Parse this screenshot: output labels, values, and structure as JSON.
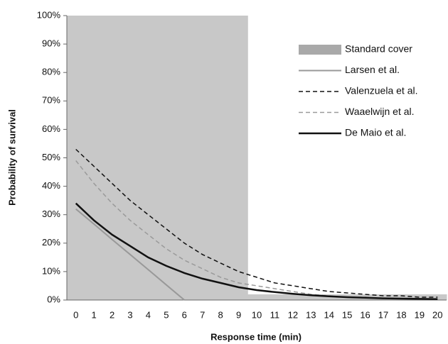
{
  "chart_data": {
    "type": "line",
    "x_label": "Response time (min)",
    "y_label": "Probability of survival",
    "categories": [
      "0",
      "1",
      "2",
      "3",
      "4",
      "5",
      "6",
      "7",
      "8",
      "9",
      "10",
      "11",
      "12",
      "13",
      "14",
      "15",
      "16",
      "17",
      "18",
      "19",
      "20"
    ],
    "ylim": [
      0,
      100
    ],
    "yticks": [
      {
        "value": 0,
        "label": "0%"
      },
      {
        "value": 10,
        "label": "10%"
      },
      {
        "value": 20,
        "label": "20%"
      },
      {
        "value": 30,
        "label": "30%"
      },
      {
        "value": 40,
        "label": "40%"
      },
      {
        "value": 50,
        "label": "50%"
      },
      {
        "value": 60,
        "label": "60%"
      },
      {
        "value": 70,
        "label": "70%"
      },
      {
        "value": 80,
        "label": "80%"
      },
      {
        "value": 90,
        "label": "90%"
      },
      {
        "value": 100,
        "label": "100%"
      }
    ],
    "legend": "upper right",
    "series": [
      {
        "name": "Standard cover",
        "type": "bar",
        "color": "#c8c8c8",
        "values": [
          100,
          100,
          100,
          100,
          100,
          100,
          100,
          100,
          100,
          100,
          2,
          2,
          2,
          2,
          2,
          2,
          2,
          2,
          2,
          2,
          2
        ]
      },
      {
        "name": "Larsen et al.",
        "color": "#999999",
        "dash": "none",
        "width": 2,
        "values": [
          32,
          26.7,
          21.3,
          16,
          10.7,
          5.3,
          0,
          null,
          null,
          null,
          null,
          null,
          null,
          null,
          null,
          null,
          null,
          null,
          null,
          null,
          null
        ]
      },
      {
        "name": "Valenzuela et al.",
        "color": "#111111",
        "dash": "6 4",
        "width": 1.5,
        "values": [
          53,
          47,
          41,
          35,
          30,
          25,
          20,
          16,
          13,
          10,
          8,
          6,
          5,
          4,
          3,
          2.5,
          2,
          1.5,
          1.5,
          1,
          1
        ]
      },
      {
        "name": "Waaelwijn et al.",
        "color": "#9a9a9a",
        "dash": "6 4",
        "width": 1.5,
        "values": [
          49,
          41,
          34,
          28,
          23,
          18,
          14,
          11,
          8,
          6,
          5,
          4,
          3,
          2,
          1.5,
          1,
          1,
          0.5,
          0.5,
          0.5,
          0.5
        ]
      },
      {
        "name": "De Maio et al.",
        "color": "#111111",
        "dash": "none",
        "width": 2.5,
        "values": [
          34,
          28,
          23,
          19,
          15,
          12,
          9.5,
          7.5,
          6,
          4.5,
          3.5,
          2.8,
          2.2,
          1.7,
          1.3,
          1,
          0.8,
          0.6,
          0.5,
          0.4,
          0.3
        ]
      }
    ]
  }
}
